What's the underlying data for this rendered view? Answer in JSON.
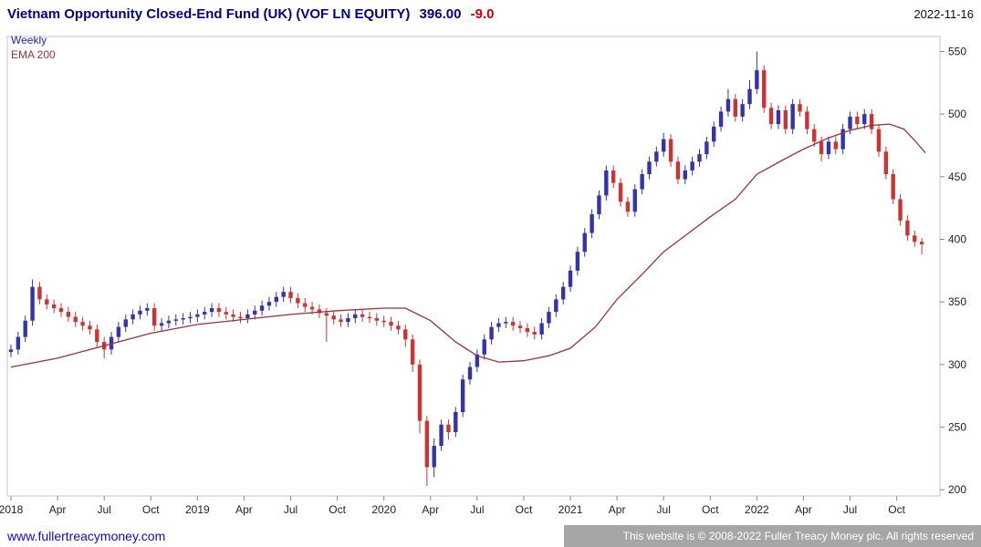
{
  "header": {
    "title": "Vietnam Opportunity Closed-End Fund (UK) (VOF LN EQUITY)",
    "price": "396.00",
    "change": "-9.0",
    "date": "2022-11-16"
  },
  "legend": {
    "timeframe": "Weekly",
    "overlay": "EMA 200"
  },
  "footer": {
    "link": "www.fullertreacymoney.com",
    "copyright": "This website is © 2008-2022 Fuller Treacy Money plc. All rights reserved"
  },
  "colors": {
    "title": "#00008b",
    "change_negative": "#cc0000",
    "candle_up": "#3333aa",
    "candle_down": "#cc3333",
    "ema": "#993333",
    "axis_text": "#222222",
    "frame": "#c4c4c4",
    "tick": "#888888",
    "footer_bar": "#a6a6a6",
    "link": "#0b0bcc"
  },
  "chart_data": {
    "type": "candlestick",
    "title": "Vietnam Opportunity Closed-End Fund (UK) (VOF LN EQUITY)",
    "subtitle": "Weekly candles with EMA 200 overlay",
    "last_price": 396.0,
    "change": -9.0,
    "date": "2022-11-16",
    "legend_entries": [
      "Weekly",
      "EMA 200"
    ],
    "legend_position": "top-left",
    "grid": false,
    "y_axis_side": "right",
    "ylim": [
      195,
      562
    ],
    "y_ticks": [
      200,
      250,
      300,
      350,
      400,
      450,
      500,
      550
    ],
    "x_range_weeks": 256,
    "x_tick_weeks": [
      0,
      13,
      26,
      39,
      52,
      65,
      78,
      91,
      104,
      117,
      130,
      143,
      156,
      169,
      182,
      195,
      208,
      221,
      234,
      247
    ],
    "x_tick_labels": [
      "2018",
      "Apr",
      "Jul",
      "Oct",
      "2019",
      "Apr",
      "Jul",
      "Oct",
      "2020",
      "Apr",
      "Jul",
      "Oct",
      "2021",
      "Apr",
      "Jul",
      "Oct",
      "2022",
      "Apr",
      "Jul",
      "Oct"
    ],
    "candles": {
      "note": "weekly series approximated at 2-week steps, values [open, high, low, close]",
      "start_week": 0,
      "week_step": 2,
      "ohlc": [
        [
          310,
          316,
          306,
          312
        ],
        [
          312,
          326,
          308,
          322
        ],
        [
          322,
          339,
          318,
          335
        ],
        [
          335,
          368,
          331,
          362
        ],
        [
          362,
          366,
          348,
          352
        ],
        [
          352,
          356,
          344,
          348
        ],
        [
          348,
          352,
          341,
          345
        ],
        [
          345,
          349,
          338,
          342
        ],
        [
          342,
          346,
          334,
          338
        ],
        [
          338,
          342,
          330,
          334
        ],
        [
          334,
          338,
          327,
          331
        ],
        [
          331,
          335,
          324,
          328
        ],
        [
          328,
          332,
          314,
          318
        ],
        [
          318,
          322,
          305,
          312
        ],
        [
          312,
          326,
          308,
          322
        ],
        [
          322,
          334,
          318,
          330
        ],
        [
          330,
          340,
          326,
          336
        ],
        [
          336,
          344,
          332,
          340
        ],
        [
          340,
          347,
          336,
          343
        ],
        [
          343,
          349,
          339,
          345
        ],
        [
          345,
          349,
          327,
          331
        ],
        [
          331,
          337,
          327,
          333
        ],
        [
          333,
          339,
          329,
          335
        ],
        [
          335,
          340,
          331,
          336
        ],
        [
          336,
          341,
          332,
          337
        ],
        [
          337,
          342,
          333,
          338
        ],
        [
          338,
          344,
          334,
          340
        ],
        [
          340,
          346,
          336,
          342
        ],
        [
          342,
          349,
          338,
          345
        ],
        [
          345,
          349,
          338,
          342
        ],
        [
          342,
          346,
          336,
          340
        ],
        [
          340,
          344,
          334,
          338
        ],
        [
          338,
          342,
          333,
          337
        ],
        [
          337,
          344,
          333,
          340
        ],
        [
          340,
          347,
          336,
          343
        ],
        [
          343,
          351,
          339,
          347
        ],
        [
          347,
          354,
          343,
          350
        ],
        [
          350,
          358,
          346,
          354
        ],
        [
          354,
          362,
          350,
          358
        ],
        [
          358,
          362,
          349,
          353
        ],
        [
          353,
          357,
          345,
          349
        ],
        [
          349,
          353,
          342,
          346
        ],
        [
          346,
          350,
          340,
          344
        ],
        [
          344,
          348,
          337,
          341
        ],
        [
          341,
          345,
          318,
          339
        ],
        [
          339,
          343,
          332,
          336
        ],
        [
          336,
          340,
          330,
          334
        ],
        [
          334,
          341,
          330,
          337
        ],
        [
          337,
          344,
          333,
          340
        ],
        [
          340,
          344,
          334,
          338
        ],
        [
          338,
          342,
          333,
          337
        ],
        [
          337,
          341,
          331,
          335
        ],
        [
          335,
          339,
          330,
          334
        ],
        [
          334,
          338,
          327,
          331
        ],
        [
          331,
          335,
          324,
          328
        ],
        [
          328,
          332,
          314,
          320
        ],
        [
          320,
          324,
          294,
          300
        ],
        [
          300,
          304,
          245,
          255
        ],
        [
          255,
          259,
          203,
          218
        ],
        [
          218,
          241,
          210,
          235
        ],
        [
          235,
          256,
          231,
          252
        ],
        [
          252,
          256,
          240,
          246
        ],
        [
          246,
          266,
          242,
          262
        ],
        [
          262,
          292,
          258,
          288
        ],
        [
          288,
          302,
          284,
          298
        ],
        [
          298,
          312,
          294,
          308
        ],
        [
          308,
          324,
          304,
          320
        ],
        [
          320,
          334,
          316,
          330
        ],
        [
          330,
          337,
          326,
          333
        ],
        [
          333,
          338,
          329,
          334
        ],
        [
          334,
          338,
          327,
          331
        ],
        [
          331,
          335,
          325,
          329
        ],
        [
          329,
          333,
          322,
          326
        ],
        [
          326,
          330,
          320,
          324
        ],
        [
          324,
          337,
          320,
          333
        ],
        [
          333,
          346,
          329,
          342
        ],
        [
          342,
          356,
          338,
          352
        ],
        [
          352,
          366,
          348,
          362
        ],
        [
          362,
          379,
          358,
          375
        ],
        [
          375,
          394,
          371,
          390
        ],
        [
          390,
          409,
          386,
          405
        ],
        [
          405,
          424,
          401,
          420
        ],
        [
          420,
          439,
          416,
          435
        ],
        [
          435,
          459,
          431,
          455
        ],
        [
          455,
          459,
          441,
          445
        ],
        [
          445,
          449,
          426,
          430
        ],
        [
          430,
          434,
          418,
          422
        ],
        [
          422,
          444,
          418,
          440
        ],
        [
          440,
          456,
          436,
          452
        ],
        [
          452,
          466,
          448,
          462
        ],
        [
          462,
          474,
          458,
          470
        ],
        [
          470,
          485,
          466,
          480
        ],
        [
          480,
          484,
          458,
          462
        ],
        [
          462,
          466,
          444,
          448
        ],
        [
          448,
          459,
          444,
          455
        ],
        [
          455,
          466,
          451,
          462
        ],
        [
          462,
          472,
          458,
          468
        ],
        [
          468,
          482,
          464,
          478
        ],
        [
          478,
          494,
          474,
          490
        ],
        [
          490,
          506,
          486,
          502
        ],
        [
          502,
          520,
          498,
          512
        ],
        [
          512,
          516,
          494,
          498
        ],
        [
          498,
          512,
          494,
          508
        ],
        [
          508,
          527,
          504,
          520
        ],
        [
          520,
          550,
          516,
          535
        ],
        [
          535,
          539,
          501,
          505
        ],
        [
          505,
          509,
          488,
          492
        ],
        [
          492,
          507,
          488,
          503
        ],
        [
          503,
          507,
          484,
          488
        ],
        [
          488,
          512,
          484,
          508
        ],
        [
          508,
          512,
          498,
          502
        ],
        [
          502,
          506,
          484,
          488
        ],
        [
          488,
          492,
          474,
          478
        ],
        [
          478,
          482,
          462,
          468
        ],
        [
          468,
          482,
          464,
          478
        ],
        [
          478,
          482,
          468,
          472
        ],
        [
          472,
          492,
          468,
          488
        ],
        [
          488,
          502,
          484,
          498
        ],
        [
          498,
          502,
          488,
          492
        ],
        [
          492,
          504,
          488,
          500
        ],
        [
          500,
          504,
          484,
          488
        ],
        [
          488,
          492,
          466,
          470
        ],
        [
          470,
          474,
          448,
          452
        ],
        [
          452,
          456,
          428,
          432
        ],
        [
          432,
          436,
          411,
          415
        ],
        [
          415,
          419,
          399,
          403
        ],
        [
          403,
          407,
          394,
          398
        ],
        [
          398,
          401,
          388,
          396
        ]
      ]
    },
    "ema_200": {
      "points": [
        [
          0,
          298
        ],
        [
          13,
          305
        ],
        [
          26,
          315
        ],
        [
          39,
          325
        ],
        [
          52,
          332
        ],
        [
          65,
          336
        ],
        [
          78,
          340
        ],
        [
          91,
          343
        ],
        [
          104,
          345
        ],
        [
          110,
          345
        ],
        [
          117,
          335
        ],
        [
          124,
          318
        ],
        [
          130,
          307
        ],
        [
          136,
          302
        ],
        [
          143,
          303
        ],
        [
          150,
          307
        ],
        [
          156,
          313
        ],
        [
          163,
          330
        ],
        [
          169,
          352
        ],
        [
          176,
          372
        ],
        [
          182,
          390
        ],
        [
          189,
          405
        ],
        [
          195,
          418
        ],
        [
          202,
          432
        ],
        [
          208,
          452
        ],
        [
          215,
          463
        ],
        [
          221,
          472
        ],
        [
          228,
          481
        ],
        [
          234,
          487
        ],
        [
          240,
          491
        ],
        [
          245,
          492
        ],
        [
          249,
          488
        ],
        [
          252,
          479
        ],
        [
          255,
          469
        ]
      ]
    }
  }
}
